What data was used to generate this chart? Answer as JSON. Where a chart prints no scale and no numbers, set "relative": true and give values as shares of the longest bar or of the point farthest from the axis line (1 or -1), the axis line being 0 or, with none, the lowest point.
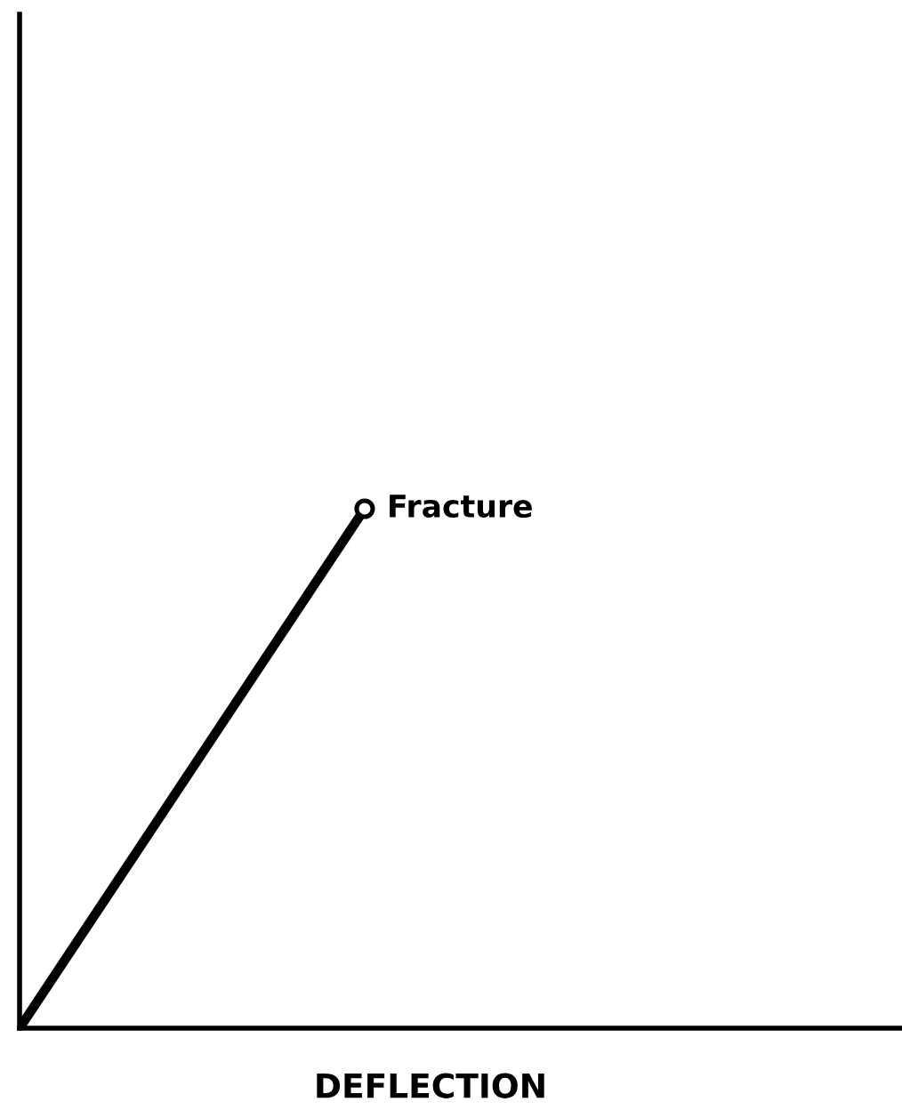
{
  "chart_data": {
    "type": "line",
    "xlabel": "DEFLECTION",
    "categories": [
      null,
      null
    ],
    "relative": true,
    "series": [
      {
        "color": "#000000",
        "values": [
          0,
          1
        ]
      }
    ],
    "annotations": [
      "Fracture"
    ]
  }
}
